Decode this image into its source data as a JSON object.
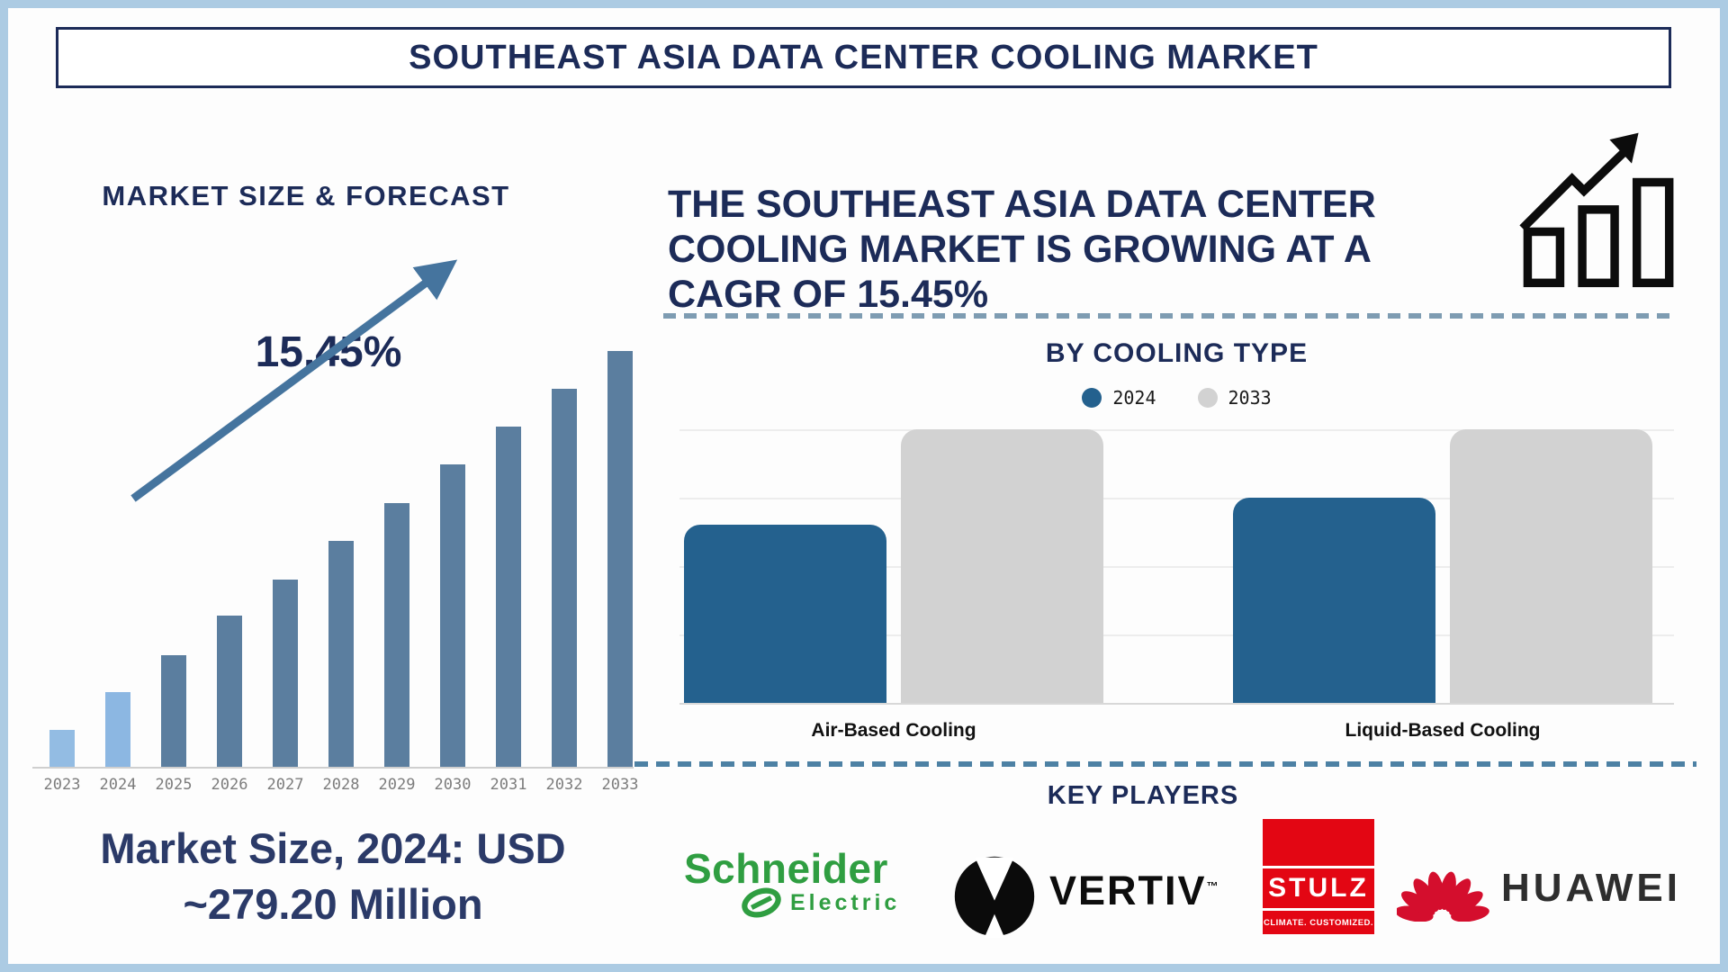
{
  "title": "SOUTHEAST ASIA DATA CENTER COOLING MARKET",
  "colors": {
    "navy": "#1c2b58",
    "frame_blue": "#accbe3",
    "left_bar_steel": "#5b7e9f",
    "left_bar_light_2023": "#93bce3",
    "left_bar_light_2024": "#8cb7e2",
    "arrow_blue": "#45749e",
    "right_bar_2024": "#24618e",
    "right_bar_2033": "#d2d2d2",
    "dash_top": "#7e9cb2",
    "dash_bottom": "#4d81a4",
    "schneider_green": "#2f9e41",
    "stulz_red": "#e30613",
    "huawei_red": "#d40e2d"
  },
  "left_panel": {
    "heading": "MARKET SIZE & FORECAST",
    "cagr_annotation": "15.45%",
    "market_size_line1": "Market Size, 2024: USD",
    "market_size_line2": "~279.20 Million"
  },
  "right_panel": {
    "statement_line1": "THE SOUTHEAST ASIA DATA CENTER",
    "statement_line2": "COOLING MARKET IS GROWING AT A",
    "statement_line3": "CAGR OF 15.45%",
    "section_heading": "BY COOLING TYPE",
    "key_players_heading": "KEY PLAYERS"
  },
  "chart_data": [
    {
      "id": "market-size-forecast",
      "type": "bar",
      "title": "MARKET SIZE & FORECAST",
      "categories": [
        "2023",
        "2024",
        "2025",
        "2026",
        "2027",
        "2028",
        "2029",
        "2030",
        "2031",
        "2032",
        "2033"
      ],
      "values_pct_of_max": [
        9.1,
        18.2,
        27.1,
        36.4,
        45.2,
        54.5,
        63.6,
        72.7,
        81.8,
        90.9,
        100
      ],
      "bar_colors": [
        "#93bce3",
        "#8cb7e2",
        "#5b7e9f",
        "#5b7e9f",
        "#5b7e9f",
        "#5b7e9f",
        "#5b7e9f",
        "#5b7e9f",
        "#5b7e9f",
        "#5b7e9f",
        "#5b7e9f"
      ],
      "annotation": "15.45%",
      "known_values": {
        "2024": 279.2,
        "unit": "USD Million"
      },
      "cagr_pct": 15.45,
      "y_axis_shown": false,
      "grid": false
    },
    {
      "id": "by-cooling-type",
      "type": "bar",
      "title": "BY COOLING TYPE",
      "categories": [
        "Air-Based Cooling",
        "Liquid-Based Cooling"
      ],
      "series": [
        {
          "name": "2024",
          "color": "#24618e",
          "values_pct_of_plot": [
            65,
            75
          ]
        },
        {
          "name": "2033",
          "color": "#d2d2d2",
          "values_pct_of_plot": [
            100,
            100
          ]
        }
      ],
      "legend_position": "top",
      "y_axis_shown": false,
      "grid": true,
      "gridline_count": 5
    }
  ],
  "players": [
    {
      "name": "Schneider Electric",
      "word1": "Schneider",
      "word2": "Electric",
      "brand_color": "#2f9e41"
    },
    {
      "name": "Vertiv",
      "wordmark": "VERTIV",
      "trademark": "TM"
    },
    {
      "name": "Stulz",
      "wordmark": "STULZ",
      "tagline": "CLIMATE. CUSTOMIZED.",
      "brand_color": "#e30613"
    },
    {
      "name": "Huawei",
      "wordmark": "HUAWEI",
      "brand_color": "#d40e2d"
    }
  ]
}
